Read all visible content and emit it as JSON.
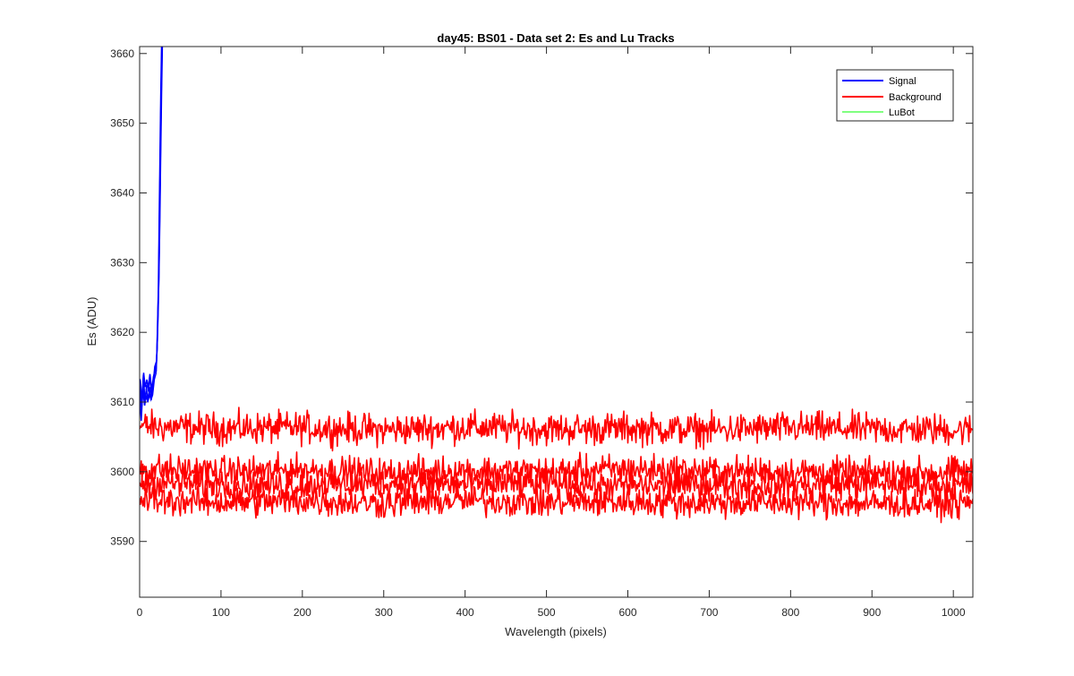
{
  "chart_data": {
    "type": "line",
    "title": "day45: BS01 - Data set 2: Es and Lu Tracks",
    "xlabel": "Wavelength (pixels)",
    "ylabel": "Es (ADU)",
    "xlim": [
      0,
      1024
    ],
    "ylim": [
      3582,
      3661
    ],
    "xticks": [
      0,
      100,
      200,
      300,
      400,
      500,
      600,
      700,
      800,
      900,
      1000
    ],
    "yticks": [
      3590,
      3600,
      3610,
      3620,
      3630,
      3640,
      3650,
      3660
    ],
    "grid": false,
    "legend_position": "top-right",
    "legend": [
      {
        "name": "Signal",
        "color": "#0000ff"
      },
      {
        "name": "Background",
        "color": "#ff0000"
      },
      {
        "name": "LuBot",
        "color": "#00ff00"
      }
    ],
    "series": [
      {
        "name": "Signal",
        "color": "#0000ff",
        "x": [
          0,
          2,
          4,
          6,
          8,
          10,
          12,
          14,
          16,
          18,
          20,
          21,
          22,
          23,
          24,
          25,
          26,
          27
        ],
        "y": [
          3612,
          3609,
          3613,
          3610,
          3612,
          3611,
          3613,
          3611,
          3612,
          3614,
          3615,
          3618,
          3622,
          3628,
          3636,
          3645,
          3654,
          3661
        ]
      },
      {
        "name": "Background",
        "color": "#ff0000",
        "x": [
          0,
          100,
          200,
          300,
          400,
          500,
          600,
          700,
          800,
          900,
          1024
        ],
        "y": [
          3606.5,
          3606.2,
          3606.3,
          3606.0,
          3606.4,
          3606.1,
          3606.2,
          3606.0,
          3606.3,
          3606.1,
          3606.0
        ],
        "noise": 1.6
      },
      {
        "name": "Background",
        "color": "#ff0000",
        "x": [
          0,
          100,
          200,
          300,
          400,
          500,
          600,
          700,
          800,
          900,
          1024
        ],
        "y": [
          3600.5,
          3600.0,
          3600.3,
          3599.8,
          3600.2,
          3600.0,
          3600.4,
          3600.1,
          3600.0,
          3599.8,
          3600.0
        ],
        "noise": 1.5
      },
      {
        "name": "Background",
        "color": "#ff0000",
        "x": [
          0,
          100,
          200,
          300,
          400,
          500,
          600,
          700,
          800,
          900,
          1024
        ],
        "y": [
          3598.5,
          3598.2,
          3598.0,
          3598.3,
          3598.1,
          3598.4,
          3598.0,
          3598.2,
          3598.1,
          3598.3,
          3598.0
        ],
        "noise": 1.5
      },
      {
        "name": "Background",
        "color": "#ff0000",
        "x": [
          0,
          100,
          200,
          300,
          400,
          500,
          600,
          700,
          800,
          900,
          1024
        ],
        "y": [
          3596.0,
          3595.6,
          3595.8,
          3595.5,
          3595.9,
          3595.6,
          3595.7,
          3595.5,
          3595.6,
          3595.4,
          3595.5
        ],
        "noise": 1.5
      }
    ]
  }
}
